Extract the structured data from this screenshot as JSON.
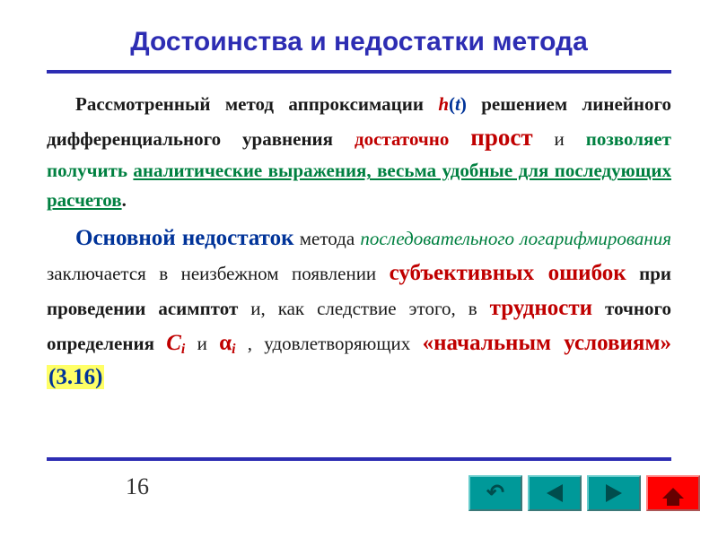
{
  "title": "Достоинства и недостатки метода",
  "page_number": "16",
  "para1": {
    "t1": "Рассмотренный метод аппроксимации ",
    "h": "h",
    "paren_open": "(",
    "t_var": "t",
    "paren_close": ")",
    "t2": " решением линейного дифференциального уравнения ",
    "adv1": "достаточно ",
    "adv2": "прост",
    "t3": " и ",
    "adv3": "позволяет получить ",
    "adv4": "аналитические выражения, весьма удобные для последующих расчетов",
    "t4": "."
  },
  "para2": {
    "lead": "Основной недостаток",
    "t1": " метода ",
    "method": "последовательного логарифмирования",
    "t2": " заключается в неизбежном появлении ",
    "err": "субъективных ошибок",
    "t3": " при проведении асимптот",
    "t4": " и, как следствие этого, в ",
    "diff": "трудности",
    "t5": " точного определения ",
    "C": "C",
    "Ci": "i",
    "and": " и ",
    "alpha": "α",
    "ai": "i",
    "t6": " , удовлетворяющих ",
    "init": "«начальным условиям»",
    "sep": "  ",
    "ref": "(3.16)"
  },
  "nav": {
    "back": "back-button",
    "prev": "prev-button",
    "next": "next-button",
    "home": "home-button"
  },
  "colors": {
    "title": "#2d2db3",
    "rule": "#2d2db3",
    "red": "#c00000",
    "green": "#008040",
    "dblue": "#003399",
    "nav_bg": "#009999",
    "home_bg": "#ff0000",
    "highlight": "#ffff66"
  }
}
